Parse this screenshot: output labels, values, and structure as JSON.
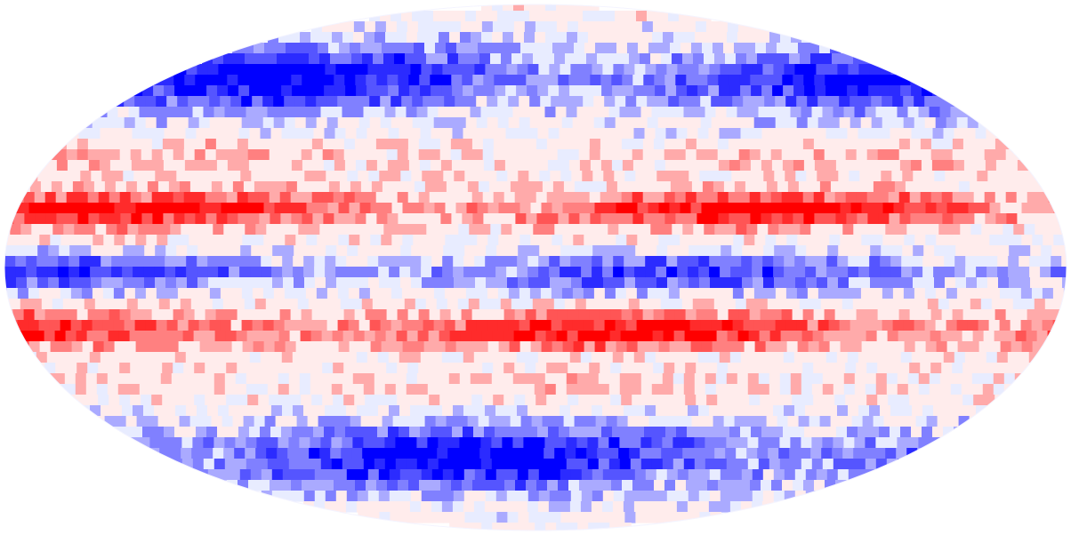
{
  "map": {
    "projection": "mollweide",
    "colormap": "bwr",
    "color_low": "#0000ff",
    "color_mid": "#ffffff",
    "color_high": "#ff0000",
    "background": "#ffffff",
    "colorbar": false,
    "graticule": false
  }
}
